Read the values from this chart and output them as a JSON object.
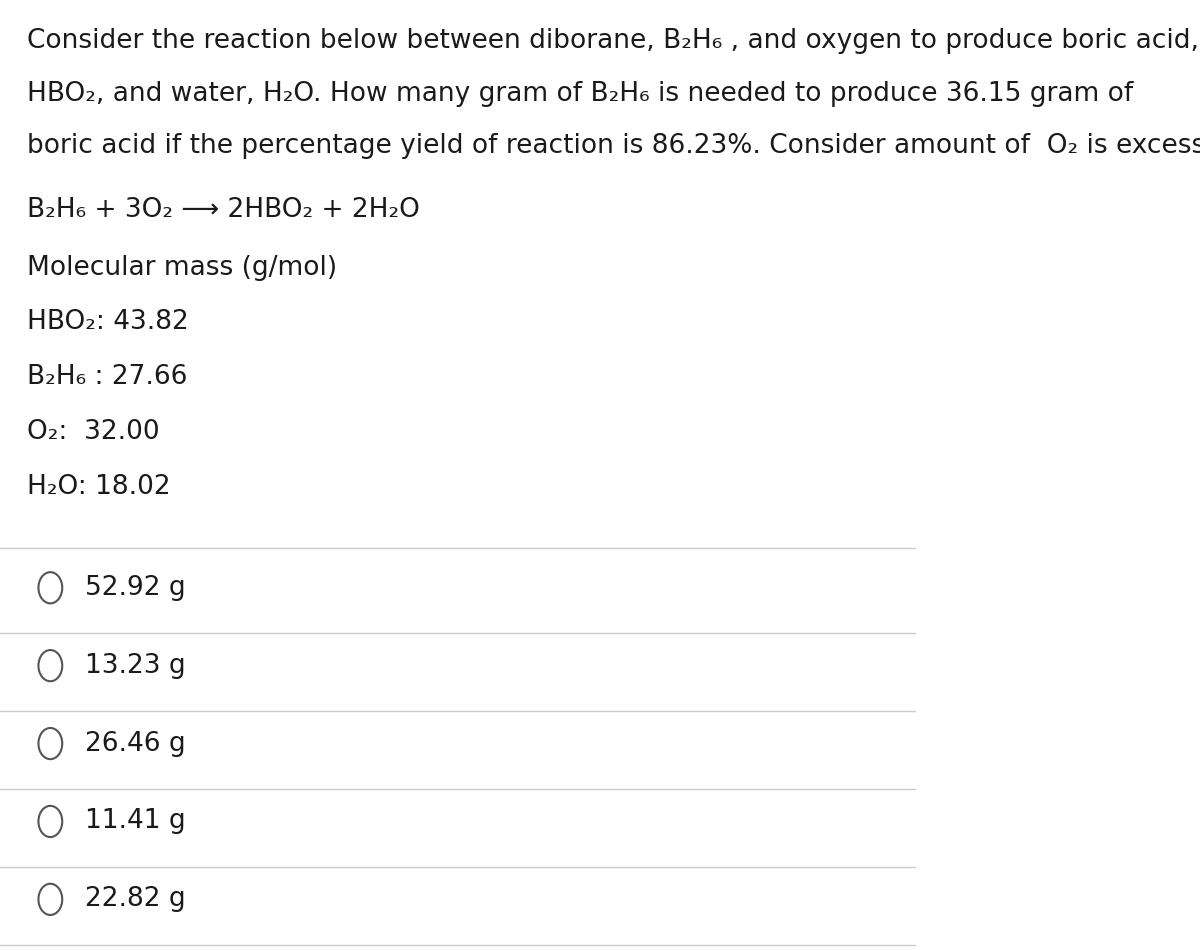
{
  "bg_color": "#ffffff",
  "text_color": "#1a1a1a",
  "question_lines": [
    "Consider the reaction below between diborane, B₂H₆ , and oxygen to produce boric acid,",
    "HBO₂, and water, H₂O. How many gram of B₂H₆ is needed to produce 36.15 gram of",
    "boric acid if the percentage yield of reaction is 86.23%. Consider amount of  O₂ is excess."
  ],
  "equation": "B₂H₆ + 3O₂ ⟶ 2HBO₂ + 2H₂O",
  "mol_mass_label": "Molecular mass (g/mol)",
  "mol_masses": [
    "HBO₂: 43.82",
    "B₂H₆ : 27.66",
    "O₂:  32.00",
    "H₂O: 18.02"
  ],
  "choices": [
    "52.92 g",
    "13.23 g",
    "26.46 g",
    "11.41 g",
    "22.82 g"
  ],
  "divider_color": "#cccccc",
  "circle_color": "#555555",
  "font_size_question": 19,
  "font_size_equation": 19,
  "font_size_mol": 19,
  "font_size_choices": 19
}
